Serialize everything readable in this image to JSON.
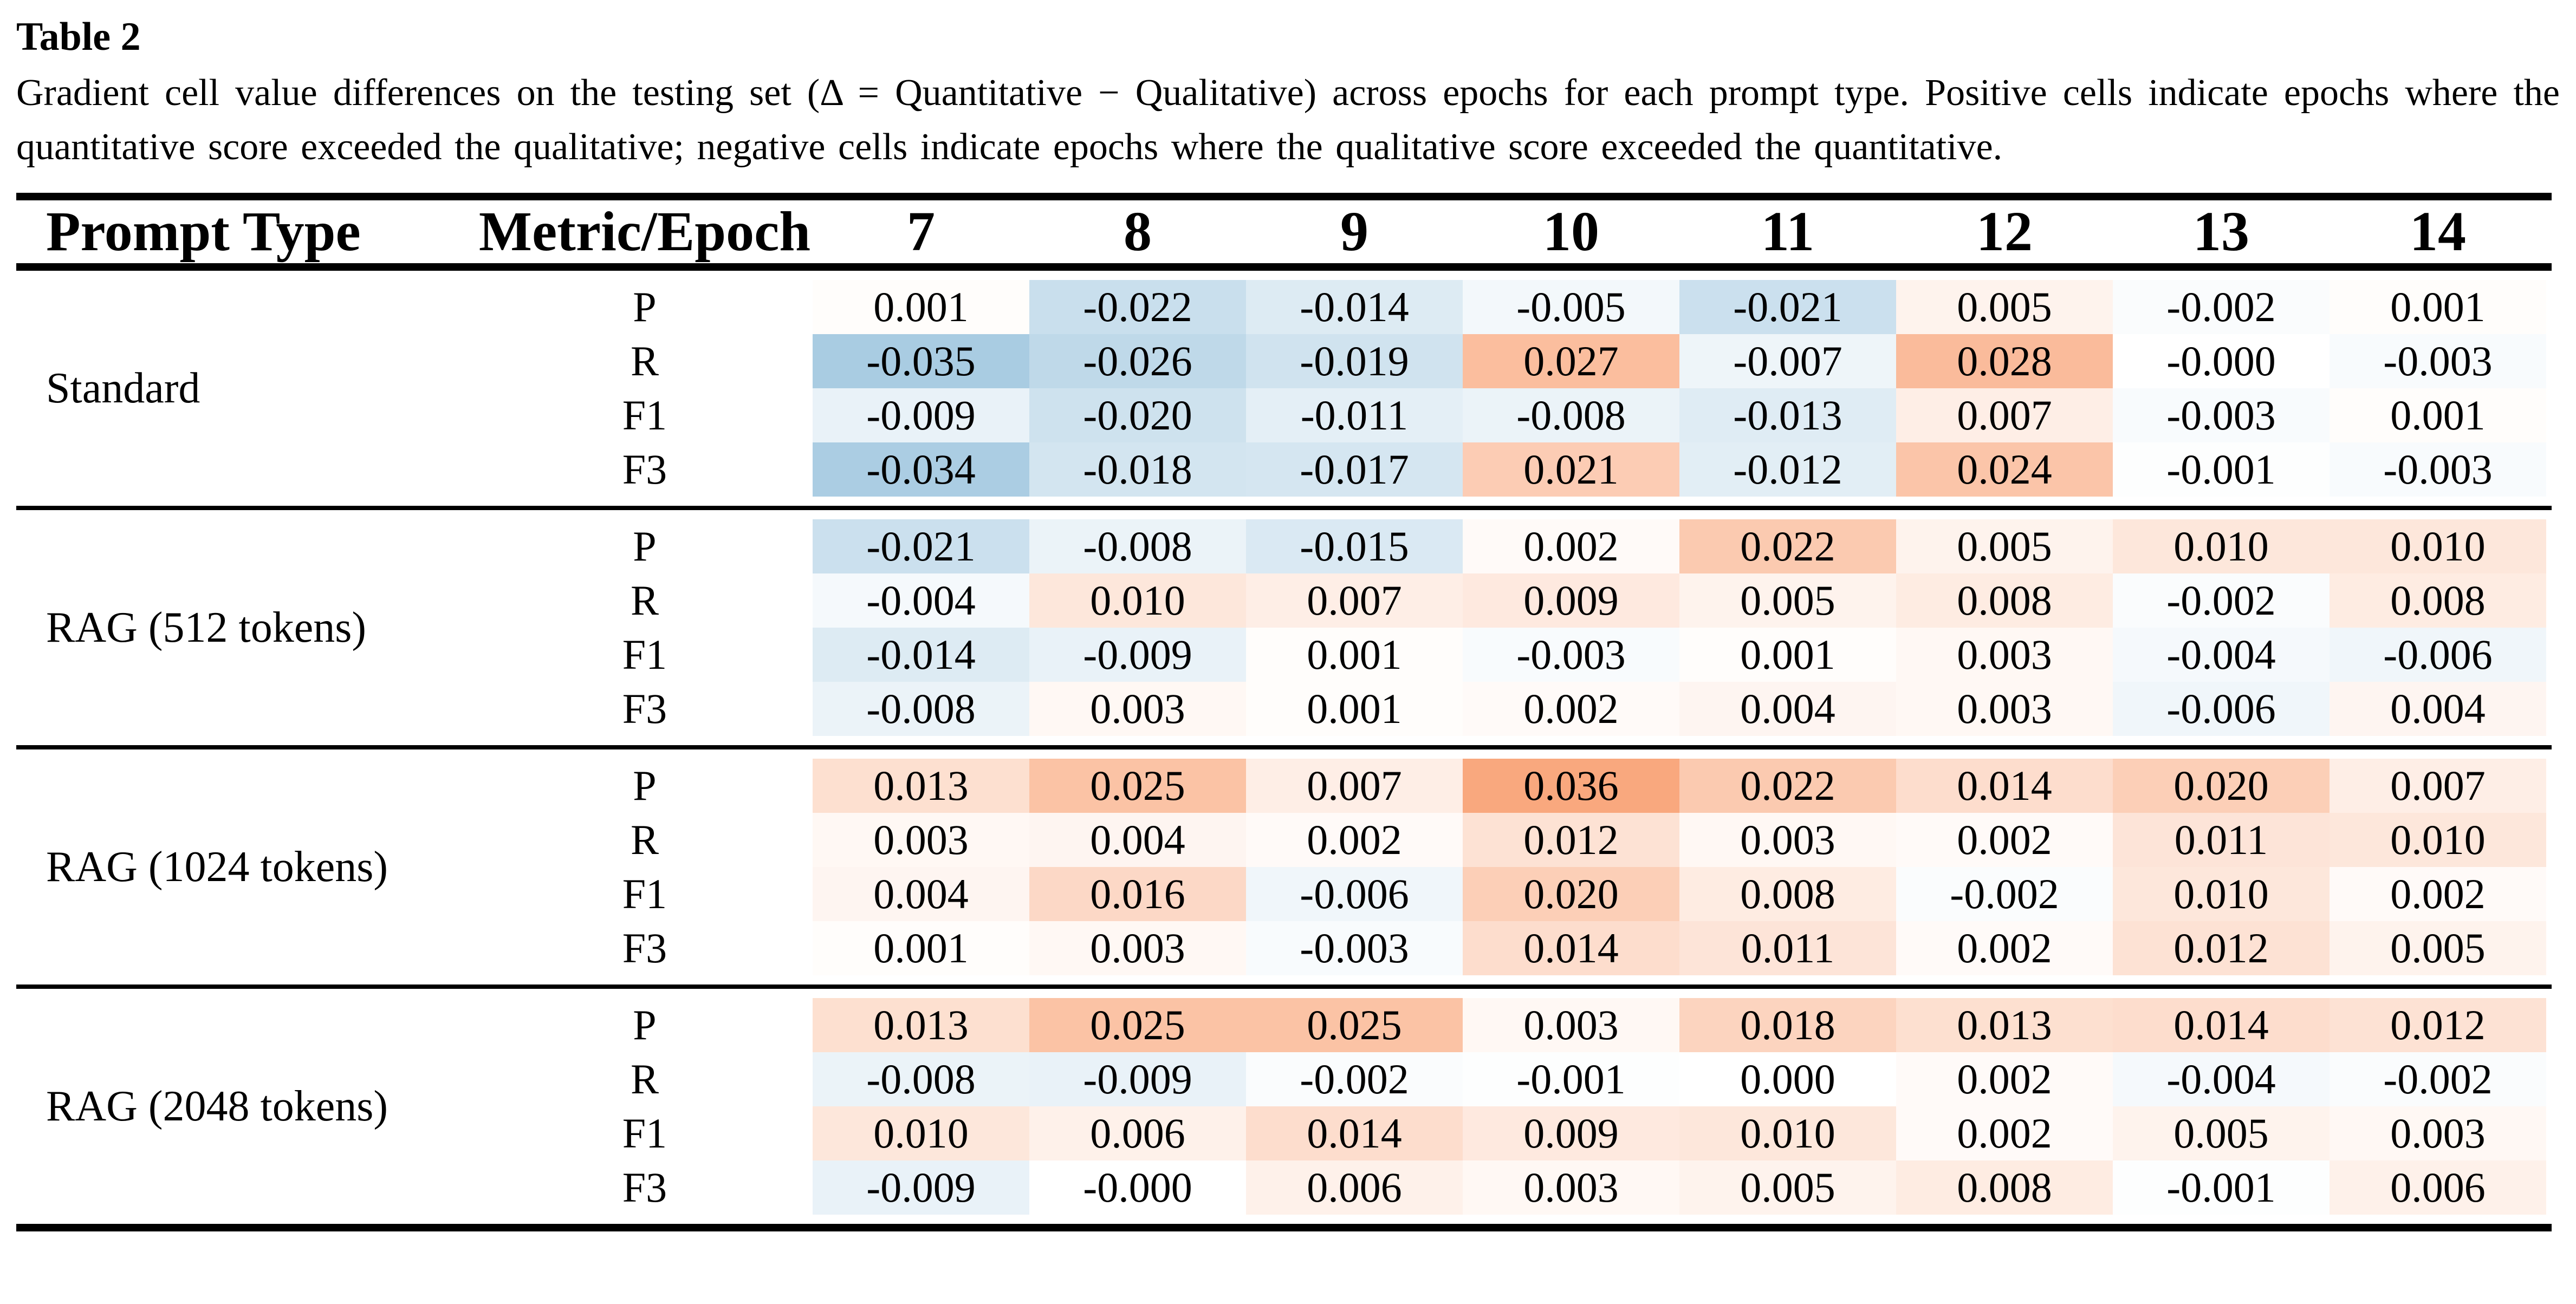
{
  "title": "Table 2",
  "caption": "Gradient cell value differences on the testing set (Δ = Quantitative − Qualitative) across epochs for each prompt type. Positive cells indicate epochs where the quantitative score exceeded the qualitative; negative cells indicate epochs where the qualitative score exceeded the quantitative.",
  "table": {
    "header": {
      "prompt_type": "Prompt Type",
      "metric_epoch": "Metric/Epoch"
    },
    "epochs": [
      "7",
      "8",
      "9",
      "10",
      "11",
      "12",
      "13",
      "14"
    ],
    "blocks": [
      {
        "prompt_type": "Standard",
        "rows": [
          {
            "metric": "P",
            "values": [
              "0.001",
              "-0.022",
              "-0.014",
              "-0.005",
              "-0.021",
              "0.005",
              "-0.002",
              "0.001"
            ]
          },
          {
            "metric": "R",
            "values": [
              "-0.035",
              "-0.026",
              "-0.019",
              "0.027",
              "-0.007",
              "0.028",
              "-0.000",
              "-0.003"
            ]
          },
          {
            "metric": "F1",
            "values": [
              "-0.009",
              "-0.020",
              "-0.011",
              "-0.008",
              "-0.013",
              "0.007",
              "-0.003",
              "0.001"
            ]
          },
          {
            "metric": "F3",
            "values": [
              "-0.034",
              "-0.018",
              "-0.017",
              "0.021",
              "-0.012",
              "0.024",
              "-0.001",
              "-0.003"
            ]
          }
        ]
      },
      {
        "prompt_type": "RAG (512 tokens)",
        "rows": [
          {
            "metric": "P",
            "values": [
              "-0.021",
              "-0.008",
              "-0.015",
              "0.002",
              "0.022",
              "0.005",
              "0.010",
              "0.010"
            ]
          },
          {
            "metric": "R",
            "values": [
              "-0.004",
              "0.010",
              "0.007",
              "0.009",
              "0.005",
              "0.008",
              "-0.002",
              "0.008"
            ]
          },
          {
            "metric": "F1",
            "values": [
              "-0.014",
              "-0.009",
              "0.001",
              "-0.003",
              "0.001",
              "0.003",
              "-0.004",
              "-0.006"
            ]
          },
          {
            "metric": "F3",
            "values": [
              "-0.008",
              "0.003",
              "0.001",
              "0.002",
              "0.004",
              "0.003",
              "-0.006",
              "0.004"
            ]
          }
        ]
      },
      {
        "prompt_type": "RAG (1024 tokens)",
        "rows": [
          {
            "metric": "P",
            "values": [
              "0.013",
              "0.025",
              "0.007",
              "0.036",
              "0.022",
              "0.014",
              "0.020",
              "0.007"
            ]
          },
          {
            "metric": "R",
            "values": [
              "0.003",
              "0.004",
              "0.002",
              "0.012",
              "0.003",
              "0.002",
              "0.011",
              "0.010"
            ]
          },
          {
            "metric": "F1",
            "values": [
              "0.004",
              "0.016",
              "-0.006",
              "0.020",
              "0.008",
              "-0.002",
              "0.010",
              "0.002"
            ]
          },
          {
            "metric": "F3",
            "values": [
              "0.001",
              "0.003",
              "-0.003",
              "0.014",
              "0.011",
              "0.002",
              "0.012",
              "0.005"
            ]
          }
        ]
      },
      {
        "prompt_type": "RAG (2048 tokens)",
        "rows": [
          {
            "metric": "P",
            "values": [
              "0.013",
              "0.025",
              "0.025",
              "0.003",
              "0.018",
              "0.013",
              "0.014",
              "0.012"
            ]
          },
          {
            "metric": "R",
            "values": [
              "-0.008",
              "-0.009",
              "-0.002",
              "-0.001",
              "0.000",
              "0.002",
              "-0.004",
              "-0.002"
            ]
          },
          {
            "metric": "F1",
            "values": [
              "0.010",
              "0.006",
              "0.014",
              "0.009",
              "0.010",
              "0.002",
              "0.005",
              "0.003"
            ]
          },
          {
            "metric": "F3",
            "values": [
              "-0.009",
              "-0.000",
              "0.006",
              "0.003",
              "0.005",
              "0.008",
              "-0.001",
              "0.006"
            ]
          }
        ]
      }
    ]
  },
  "heatmap_colors": {
    "positive_max_color": "#f9a87e",
    "negative_max_color": "#a9cce2",
    "zero_color": "#ffffff",
    "vmax": 0.036,
    "vmin": -0.035
  }
}
